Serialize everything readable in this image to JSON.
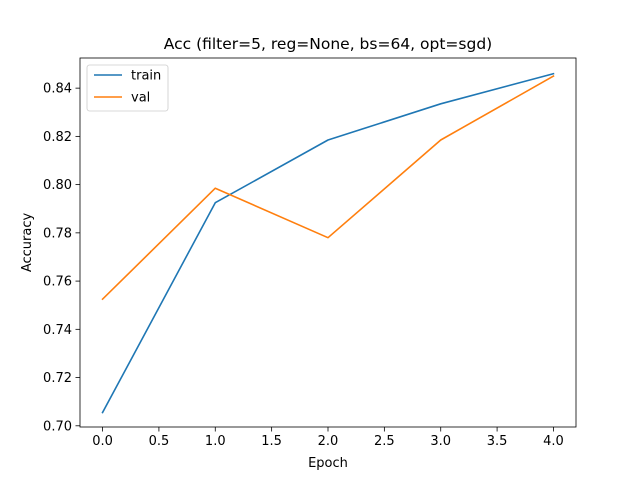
{
  "chart_data": {
    "type": "line",
    "title": "Acc (filter=5, reg=None, bs=64, opt=sgd)",
    "xlabel": "Epoch",
    "ylabel": "Accuracy",
    "x": [
      0,
      1,
      2,
      3,
      4
    ],
    "xlim": [
      -0.2,
      4.2
    ],
    "ylim": [
      0.6995,
      0.8525
    ],
    "x_ticks": [
      0.0,
      0.5,
      1.0,
      1.5,
      2.0,
      2.5,
      3.0,
      3.5,
      4.0
    ],
    "x_tick_labels": [
      "0.0",
      "0.5",
      "1.0",
      "1.5",
      "2.0",
      "2.5",
      "3.0",
      "3.5",
      "4.0"
    ],
    "y_ticks": [
      0.7,
      0.72,
      0.74,
      0.76,
      0.78,
      0.8,
      0.82,
      0.84
    ],
    "y_tick_labels": [
      "0.70",
      "0.72",
      "0.74",
      "0.76",
      "0.78",
      "0.80",
      "0.82",
      "0.84"
    ],
    "series": [
      {
        "name": "train",
        "color": "#1f77b4",
        "values": [
          0.7055,
          0.7925,
          0.8185,
          0.8335,
          0.846
        ]
      },
      {
        "name": "val",
        "color": "#ff7f0e",
        "values": [
          0.7525,
          0.7985,
          0.778,
          0.8185,
          0.845
        ]
      }
    ],
    "legend": {
      "position": "upper-left",
      "entries": [
        "train",
        "val"
      ]
    },
    "grid": false
  }
}
